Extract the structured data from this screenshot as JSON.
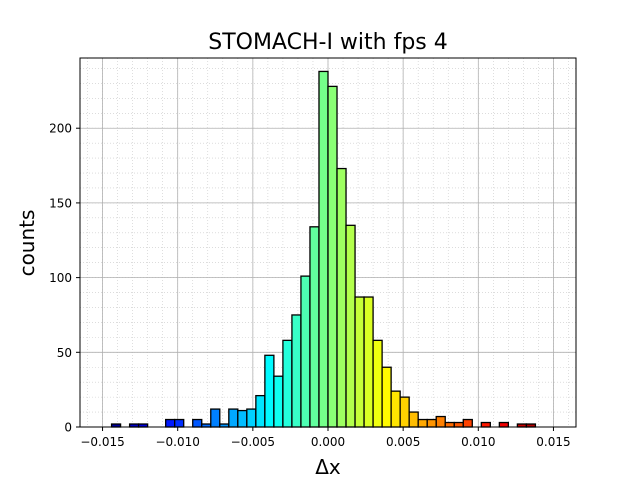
{
  "chart_data": {
    "type": "bar",
    "title": "STOMACH-I with fps 4",
    "xlabel": "Δx",
    "ylabel": "counts",
    "xlim": [
      -0.0165,
      0.0165
    ],
    "ylim": [
      0,
      247
    ],
    "grid": true,
    "x_ticks": [
      {
        "value": -0.015,
        "label": "−0.015"
      },
      {
        "value": -0.01,
        "label": "−0.010"
      },
      {
        "value": -0.005,
        "label": "−0.005"
      },
      {
        "value": 0.0,
        "label": "0.000"
      },
      {
        "value": 0.005,
        "label": "0.005"
      },
      {
        "value": 0.01,
        "label": "0.010"
      },
      {
        "value": 0.015,
        "label": "0.015"
      }
    ],
    "y_ticks": [
      {
        "value": 0,
        "label": "0"
      },
      {
        "value": 50,
        "label": "50"
      },
      {
        "value": 100,
        "label": "100"
      },
      {
        "value": 150,
        "label": "150"
      },
      {
        "value": 200,
        "label": "200"
      }
    ],
    "bin_width": 0.0006,
    "bin_centers": [
      -0.0147,
      -0.0141,
      -0.0135,
      -0.0129,
      -0.0123,
      -0.0117,
      -0.0111,
      -0.0105,
      -0.0099,
      -0.0093,
      -0.0087,
      -0.0081,
      -0.0075,
      -0.0069,
      -0.0063,
      -0.0057,
      -0.0051,
      -0.0045,
      -0.0039,
      -0.0033,
      -0.0027,
      -0.0021,
      -0.0015,
      -0.0009,
      -0.0003,
      0.0003,
      0.0009,
      0.0015,
      0.0021,
      0.0027,
      0.0033,
      0.0039,
      0.0045,
      0.0051,
      0.0057,
      0.0063,
      0.0069,
      0.0075,
      0.0081,
      0.0087,
      0.0093,
      0.0099,
      0.0105,
      0.0111,
      0.0117,
      0.0123,
      0.0129,
      0.0135,
      0.0141,
      0.0147
    ],
    "values": [
      0,
      2,
      0,
      2,
      2,
      0,
      0,
      5,
      5,
      0,
      5,
      2,
      12,
      2,
      12,
      11,
      12,
      21,
      48,
      34,
      58,
      75,
      101,
      134,
      238,
      228,
      173,
      135,
      87,
      87,
      58,
      40,
      24,
      20,
      10,
      5,
      5,
      7,
      3,
      3,
      5,
      0,
      3,
      0,
      3,
      0,
      2,
      2,
      0,
      0
    ],
    "colormap": "jet"
  }
}
